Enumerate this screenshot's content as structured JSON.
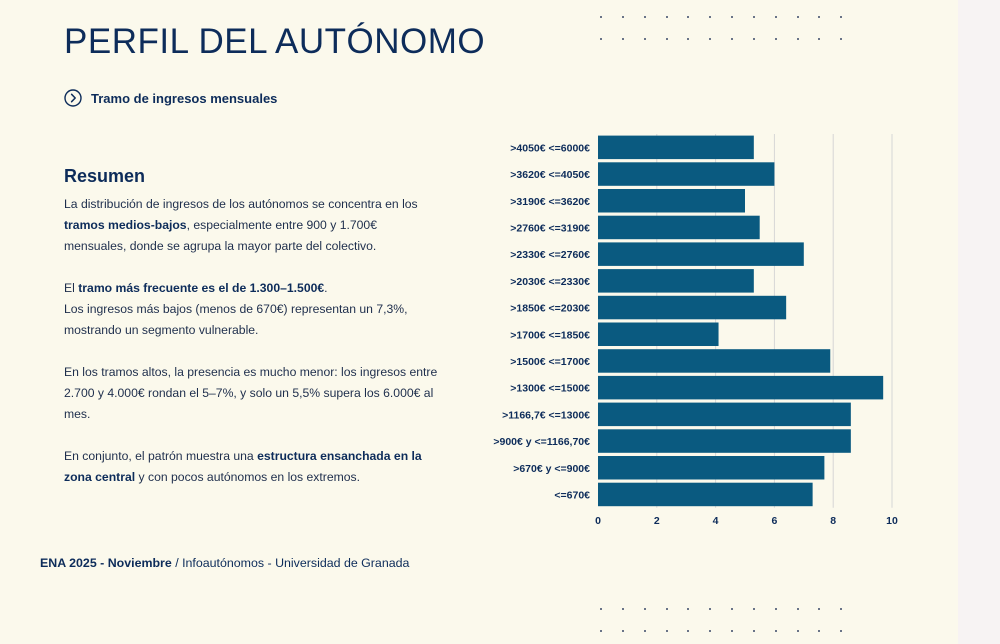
{
  "page": {
    "title": "PERFIL DEL AUTÓNOMO",
    "subtitle": "Tramo de ingresos mensuales"
  },
  "summary": {
    "heading": "Resumen",
    "p1": {
      "a": "La distribución de ingresos de los autónomos se concentra en los ",
      "b": "tramos medios-bajos",
      "c": ", especialmente entre 900 y 1.700€ mensuales, donde se agrupa la mayor parte del colectivo."
    },
    "p2": {
      "a": "El ",
      "b": "tramo más frecuente es el de 1.300–1.500€",
      "c": ".",
      "d": "Los ingresos más bajos (menos de 670€) representan un 7,3%, mostrando un segmento vulnerable."
    },
    "p3": "En los tramos altos, la presencia es mucho menor: los ingresos entre 2.700 y 4.000€ rondan el 5–7%, y solo un 5,5% supera los 6.000€ al mes.",
    "p4": {
      "a": "En conjunto, el patrón muestra una ",
      "b": "estructura ensanchada en la zona central",
      "c": " y con pocos autónomos en los extremos."
    }
  },
  "footer": {
    "bold": "ENA 2025 - Noviembre",
    "sep": " / ",
    "rest": "Infoautónomos - Universidad de Granada"
  },
  "colors": {
    "bar": "#0a5a80",
    "grid": "#d6d6d6",
    "text": "#0d2c5a"
  },
  "chart_data": {
    "type": "bar",
    "orientation": "horizontal",
    "categories": [
      ">4050€ <=6000€",
      ">3620€ <=4050€",
      ">3190€ <=3620€",
      ">2760€ <=3190€",
      ">2330€ <=2760€",
      ">2030€ <=2330€",
      ">1850€ <=2030€",
      ">1700€ <=1850€",
      ">1500€ <=1700€",
      ">1300€ <=1500€",
      ">1166,7€ <=1300€",
      ">900€ y <=1166,70€",
      ">670€ y <=900€",
      "<=670€"
    ],
    "values": [
      5.3,
      6.0,
      5.0,
      5.5,
      7.0,
      5.3,
      6.4,
      4.1,
      7.9,
      9.7,
      8.6,
      8.6,
      7.7,
      7.3
    ],
    "xlim": [
      0,
      10
    ],
    "xticks": [
      "0",
      "2",
      "4",
      "6",
      "8",
      "10"
    ],
    "xtick_values": [
      0,
      2,
      4,
      6,
      8,
      10
    ],
    "title": "",
    "xlabel": "",
    "ylabel": "",
    "grid": "vertical"
  }
}
